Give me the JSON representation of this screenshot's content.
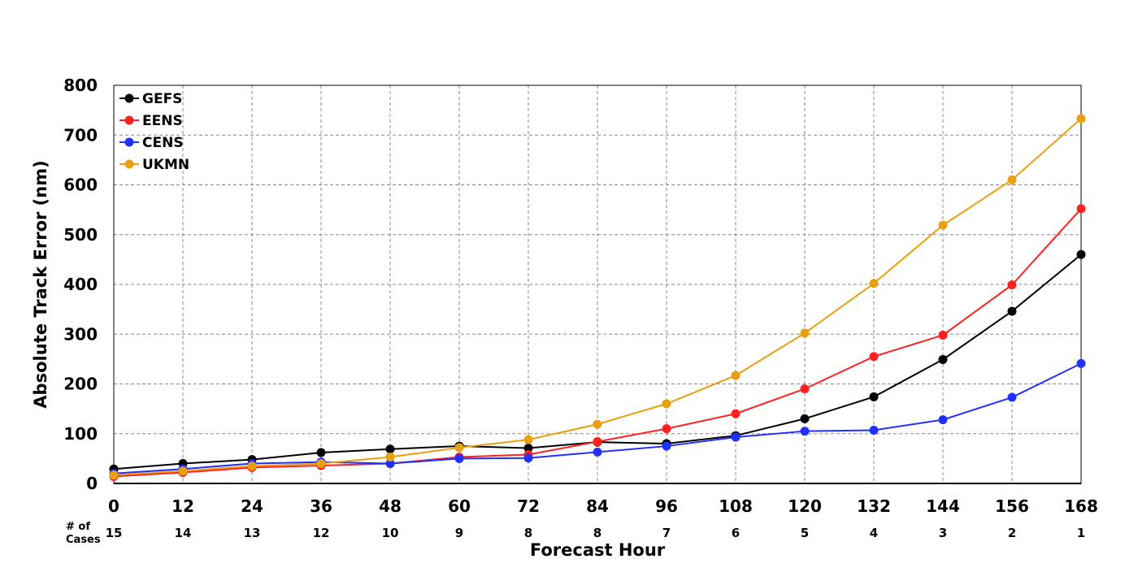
{
  "chart_data": {
    "type": "line",
    "xlabel": "Forecast Hour",
    "ylabel": "Absolute Track Error (nm)",
    "x": [
      0,
      12,
      24,
      36,
      48,
      60,
      72,
      84,
      96,
      108,
      120,
      132,
      144,
      156,
      168
    ],
    "xlim": [
      0,
      168
    ],
    "ylim": [
      0,
      800
    ],
    "yticks": [
      0,
      100,
      200,
      300,
      400,
      500,
      600,
      700,
      800
    ],
    "grid": true,
    "legend_position": "top-left",
    "cases_label_line1": "# of",
    "cases_label_line2": "Cases",
    "cases": [
      15,
      14,
      13,
      12,
      10,
      9,
      8,
      8,
      7,
      6,
      5,
      4,
      3,
      2,
      1
    ],
    "series": [
      {
        "name": "GEFS",
        "color": "#000000",
        "values": [
          29,
          40,
          48,
          62,
          69,
          75,
          71,
          83,
          80,
          96,
          130,
          174,
          249,
          346,
          460
        ]
      },
      {
        "name": "EENS",
        "color": "#ff2020",
        "values": [
          14,
          22,
          32,
          36,
          40,
          53,
          58,
          84,
          110,
          140,
          190,
          255,
          298,
          399,
          552
        ]
      },
      {
        "name": "CENS",
        "color": "#2030ff",
        "values": [
          20,
          29,
          40,
          43,
          40,
          50,
          51,
          63,
          75,
          93,
          105,
          107,
          128,
          173,
          241
        ]
      },
      {
        "name": "UKMN",
        "color": "#e8a010",
        "values": [
          17,
          25,
          35,
          40,
          53,
          72,
          88,
          119,
          160,
          217,
          302,
          402,
          519,
          610,
          733
        ]
      }
    ]
  }
}
